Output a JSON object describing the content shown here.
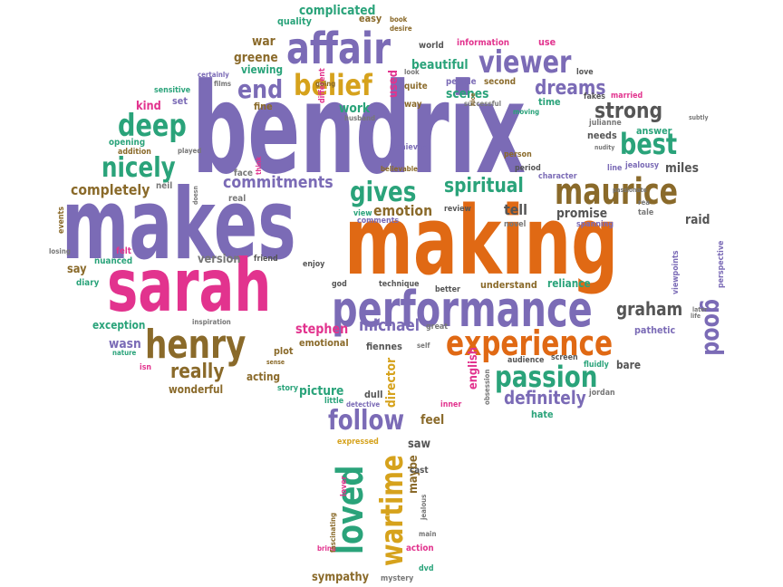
{
  "palette": {
    "purple": "#7b6bb6",
    "orange": "#e06914",
    "pink": "#e2338e",
    "green": "#2aa37a",
    "gold": "#d6a21c",
    "olive": "#8a6a2a",
    "gray": "#777777",
    "darkgray": "#555555"
  },
  "words": [
    {
      "text": "bendrix",
      "color": "purple",
      "size": 138
    },
    {
      "text": "makes",
      "color": "purple",
      "size": 108
    },
    {
      "text": "making",
      "color": "orange",
      "size": 104
    },
    {
      "text": "sarah",
      "color": "pink",
      "size": 80
    },
    {
      "text": "performance",
      "color": "purple",
      "size": 54
    },
    {
      "text": "affair",
      "color": "purple",
      "size": 48
    },
    {
      "text": "maurice",
      "color": "olive",
      "size": 40
    },
    {
      "text": "henry",
      "color": "olive",
      "size": 44
    },
    {
      "text": "experience",
      "color": "orange",
      "size": 38
    },
    {
      "text": "viewer",
      "color": "purple",
      "size": 34
    },
    {
      "text": "belief",
      "color": "gold",
      "size": 32
    },
    {
      "text": "deep",
      "color": "green",
      "size": 34
    },
    {
      "text": "nicely",
      "color": "green",
      "size": 30
    },
    {
      "text": "best",
      "color": "green",
      "size": 32
    },
    {
      "text": "passion",
      "color": "green",
      "size": 32
    },
    {
      "text": "gives",
      "color": "green",
      "size": 30
    },
    {
      "text": "follow",
      "color": "purple",
      "size": 30
    },
    {
      "text": "loved",
      "color": "green",
      "size": 40
    },
    {
      "text": "wartime",
      "color": "gold",
      "size": 34
    },
    {
      "text": "good",
      "color": "purple",
      "size": 28
    },
    {
      "text": "end",
      "color": "purple",
      "size": 28
    },
    {
      "text": "strong",
      "color": "darkgray",
      "size": 24
    },
    {
      "text": "dreams",
      "color": "purple",
      "size": 22
    },
    {
      "text": "spiritual",
      "color": "green",
      "size": 22
    },
    {
      "text": "commitments",
      "color": "purple",
      "size": 18
    },
    {
      "text": "completely",
      "color": "olive",
      "size": 16
    },
    {
      "text": "really",
      "color": "olive",
      "size": 22
    },
    {
      "text": "graham",
      "color": "darkgray",
      "size": 20
    },
    {
      "text": "definitely",
      "color": "purple",
      "size": 20
    },
    {
      "text": "michael",
      "color": "purple",
      "size": 18
    },
    {
      "text": "stephen",
      "color": "pink",
      "size": 15
    },
    {
      "text": "emotion",
      "color": "olive",
      "size": 16
    },
    {
      "text": "tell",
      "color": "darkgray",
      "size": 16
    },
    {
      "text": "promise",
      "color": "darkgray",
      "size": 14
    },
    {
      "text": "miles",
      "color": "darkgray",
      "size": 14
    },
    {
      "text": "raid",
      "color": "darkgray",
      "size": 14
    },
    {
      "text": "scenes",
      "color": "green",
      "size": 14
    },
    {
      "text": "work",
      "color": "green",
      "size": 14
    },
    {
      "text": "beautiful",
      "color": "green",
      "size": 14
    },
    {
      "text": "complicated",
      "color": "green",
      "size": 14
    },
    {
      "text": "war",
      "color": "olive",
      "size": 14
    },
    {
      "text": "greene",
      "color": "olive",
      "size": 14
    },
    {
      "text": "version",
      "color": "gray",
      "size": 13
    },
    {
      "text": "wasn",
      "color": "purple",
      "size": 14
    },
    {
      "text": "say",
      "color": "olive",
      "size": 13
    },
    {
      "text": "picture",
      "color": "green",
      "size": 14
    },
    {
      "text": "feel",
      "color": "olive",
      "size": 14
    },
    {
      "text": "saw",
      "color": "darkgray",
      "size": 13
    },
    {
      "text": "sympathy",
      "color": "olive",
      "size": 13
    },
    {
      "text": "maybe",
      "color": "olive",
      "size": 13
    },
    {
      "text": "director",
      "color": "gold",
      "size": 14
    },
    {
      "text": "english",
      "color": "pink",
      "size": 13
    },
    {
      "text": "used",
      "color": "pink",
      "size": 13
    },
    {
      "text": "kind",
      "color": "pink",
      "size": 13
    },
    {
      "text": "exception",
      "color": "green",
      "size": 12
    },
    {
      "text": "acting",
      "color": "olive",
      "size": 12
    },
    {
      "text": "wonderful",
      "color": "olive",
      "size": 12
    },
    {
      "text": "bare",
      "color": "darkgray",
      "size": 12
    },
    {
      "text": "pathetic",
      "color": "purple",
      "size": 11
    },
    {
      "text": "reliance",
      "color": "green",
      "size": 12
    },
    {
      "text": "understand",
      "color": "olive",
      "size": 11
    },
    {
      "text": "answer",
      "color": "green",
      "size": 11
    },
    {
      "text": "needs",
      "color": "darkgray",
      "size": 11
    },
    {
      "text": "hate",
      "color": "green",
      "size": 11
    },
    {
      "text": "viewing",
      "color": "green",
      "size": 12
    },
    {
      "text": "plot",
      "color": "olive",
      "size": 11
    },
    {
      "text": "emotional",
      "color": "olive",
      "size": 11
    },
    {
      "text": "fiennes",
      "color": "darkgray",
      "size": 11
    },
    {
      "text": "quality",
      "color": "green",
      "size": 11
    },
    {
      "text": "easy",
      "color": "olive",
      "size": 11
    },
    {
      "text": "world",
      "color": "darkgray",
      "size": 10
    },
    {
      "text": "information",
      "color": "pink",
      "size": 10
    },
    {
      "text": "use",
      "color": "pink",
      "size": 11
    },
    {
      "text": "people",
      "color": "purple",
      "size": 10
    },
    {
      "text": "second",
      "color": "olive",
      "size": 10
    },
    {
      "text": "time",
      "color": "green",
      "size": 11
    },
    {
      "text": "way",
      "color": "olive",
      "size": 10
    },
    {
      "text": "quite",
      "color": "olive",
      "size": 10
    },
    {
      "text": "opening",
      "color": "green",
      "size": 10
    },
    {
      "text": "addition",
      "color": "olive",
      "size": 9
    },
    {
      "text": "sensitive",
      "color": "green",
      "size": 9
    },
    {
      "text": "set",
      "color": "purple",
      "size": 11
    },
    {
      "text": "fine",
      "color": "olive",
      "size": 11
    },
    {
      "text": "face",
      "color": "gray",
      "size": 10
    },
    {
      "text": "neil",
      "color": "gray",
      "size": 10
    },
    {
      "text": "real",
      "color": "gray",
      "size": 10
    },
    {
      "text": "felt",
      "color": "pink",
      "size": 10
    },
    {
      "text": "nuanced",
      "color": "green",
      "size": 10
    },
    {
      "text": "diary",
      "color": "green",
      "size": 10
    },
    {
      "text": "friend",
      "color": "darkgray",
      "size": 9
    },
    {
      "text": "enjoy",
      "color": "darkgray",
      "size": 9
    },
    {
      "text": "god",
      "color": "darkgray",
      "size": 9
    },
    {
      "text": "technique",
      "color": "darkgray",
      "size": 9
    },
    {
      "text": "better",
      "color": "darkgray",
      "size": 9
    },
    {
      "text": "review",
      "color": "darkgray",
      "size": 9
    },
    {
      "text": "view",
      "color": "green",
      "size": 9
    },
    {
      "text": "comments",
      "color": "purple",
      "size": 9
    },
    {
      "text": "novel",
      "color": "gray",
      "size": 9
    },
    {
      "text": "spanning",
      "color": "purple",
      "size": 9
    },
    {
      "text": "tale",
      "color": "gray",
      "size": 9
    },
    {
      "text": "character",
      "color": "purple",
      "size": 9
    },
    {
      "text": "person",
      "color": "olive",
      "size": 9
    },
    {
      "text": "period",
      "color": "darkgray",
      "size": 9
    },
    {
      "text": "achieves",
      "color": "purple",
      "size": 9
    },
    {
      "text": "jealousy",
      "color": "purple",
      "size": 9
    },
    {
      "text": "line",
      "color": "purple",
      "size": 9
    },
    {
      "text": "julianne",
      "color": "gray",
      "size": 9
    },
    {
      "text": "fakes",
      "color": "darkgray",
      "size": 9
    },
    {
      "text": "married",
      "color": "pink",
      "size": 9
    },
    {
      "text": "love",
      "color": "darkgray",
      "size": 9
    },
    {
      "text": "moving",
      "color": "green",
      "size": 8
    },
    {
      "text": "successful",
      "color": "gray",
      "size": 8
    },
    {
      "text": "husband",
      "color": "gray",
      "size": 8
    },
    {
      "text": "different",
      "color": "pink",
      "size": 9
    },
    {
      "text": "going",
      "color": "olive",
      "size": 8
    },
    {
      "text": "certainly",
      "color": "purple",
      "size": 8
    },
    {
      "text": "films",
      "color": "gray",
      "size": 8
    },
    {
      "text": "played",
      "color": "gray",
      "size": 8
    },
    {
      "text": "inspiration",
      "color": "gray",
      "size": 8
    },
    {
      "text": "nature",
      "color": "green",
      "size": 8
    },
    {
      "text": "isn",
      "color": "pink",
      "size": 9
    },
    {
      "text": "sense",
      "color": "olive",
      "size": 7
    },
    {
      "text": "story",
      "color": "green",
      "size": 9
    },
    {
      "text": "little",
      "color": "green",
      "size": 9
    },
    {
      "text": "dull",
      "color": "darkgray",
      "size": 11
    },
    {
      "text": "detective",
      "color": "purple",
      "size": 8
    },
    {
      "text": "inner",
      "color": "pink",
      "size": 9
    },
    {
      "text": "obsession",
      "color": "gray",
      "size": 8
    },
    {
      "text": "audience",
      "color": "darkgray",
      "size": 9
    },
    {
      "text": "screen",
      "color": "darkgray",
      "size": 9
    },
    {
      "text": "fluidly",
      "color": "green",
      "size": 9
    },
    {
      "text": "jordan",
      "color": "gray",
      "size": 9
    },
    {
      "text": "great",
      "color": "gray",
      "size": 9
    },
    {
      "text": "self",
      "color": "gray",
      "size": 8
    },
    {
      "text": "expressed",
      "color": "gold",
      "size": 9
    },
    {
      "text": "lover",
      "color": "pink",
      "size": 9
    },
    {
      "text": "cast",
      "color": "darkgray",
      "size": 10
    },
    {
      "text": "action",
      "color": "pink",
      "size": 10
    },
    {
      "text": "dvd",
      "color": "green",
      "size": 9
    },
    {
      "text": "mystery",
      "color": "gray",
      "size": 9
    },
    {
      "text": "bring",
      "color": "pink",
      "size": 8
    },
    {
      "text": "fascinating",
      "color": "olive",
      "size": 8
    },
    {
      "text": "jealous",
      "color": "gray",
      "size": 8
    },
    {
      "text": "main",
      "color": "gray",
      "size": 8
    },
    {
      "text": "events",
      "color": "olive",
      "size": 9
    },
    {
      "text": "losing",
      "color": "gray",
      "size": 8
    },
    {
      "text": "viewpoints",
      "color": "purple",
      "size": 9
    },
    {
      "text": "perspective",
      "color": "purple",
      "size": 9
    },
    {
      "text": "book",
      "color": "olive",
      "size": 8
    },
    {
      "text": "desire",
      "color": "olive",
      "size": 8
    },
    {
      "text": "look",
      "color": "gray",
      "size": 8
    },
    {
      "text": "subtly",
      "color": "gray",
      "size": 7
    },
    {
      "text": "nudity",
      "color": "gray",
      "size": 7
    },
    {
      "text": "believable",
      "color": "olive",
      "size": 8
    },
    {
      "text": "think",
      "color": "pink",
      "size": 8
    },
    {
      "text": "doesn",
      "color": "gray",
      "size": 7
    },
    {
      "text": "passionate",
      "color": "gray",
      "size": 7
    },
    {
      "text": "rea",
      "color": "gray",
      "size": 8
    },
    {
      "text": "life",
      "color": "gray",
      "size": 7
    },
    {
      "text": "later",
      "color": "gray",
      "size": 7
    },
    {
      "text": "nice",
      "color": "olive",
      "size": 7
    }
  ]
}
